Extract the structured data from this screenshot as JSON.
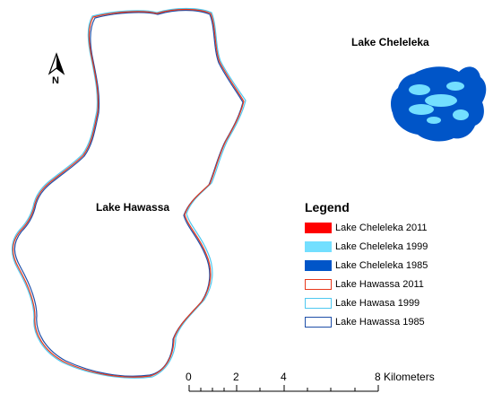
{
  "labels": {
    "hawassa": "Lake Hawassa",
    "cheleleka": "Lake Cheleleka",
    "north": "N"
  },
  "legend": {
    "title": "Legend",
    "items": [
      {
        "label": "Lake Cheleleka 2011",
        "style": "fill",
        "color": "#ff0000"
      },
      {
        "label": "Lake Cheleleka 1999",
        "style": "fill",
        "color": "#73dfff"
      },
      {
        "label": "Lake Cheleleka 1985",
        "style": "fill",
        "color": "#0055c8"
      },
      {
        "label": "Lake Hawassa 2011",
        "style": "outline",
        "color": "#e8391c"
      },
      {
        "label": "Lake Hawasa 1999",
        "style": "outline",
        "color": "#4fc8f0"
      },
      {
        "label": "Lake Hawassa 1985",
        "style": "outline",
        "color": "#1f4fa8"
      }
    ]
  },
  "scalebar": {
    "ticks": [
      "0",
      "2",
      "4",
      "8 Kilometers"
    ]
  },
  "colors": {
    "h2011": "#e8391c",
    "h1999": "#4fc8f0",
    "h1985": "#1f4fa8",
    "c1985": "#0055c8",
    "c1999": "#73dfff"
  }
}
